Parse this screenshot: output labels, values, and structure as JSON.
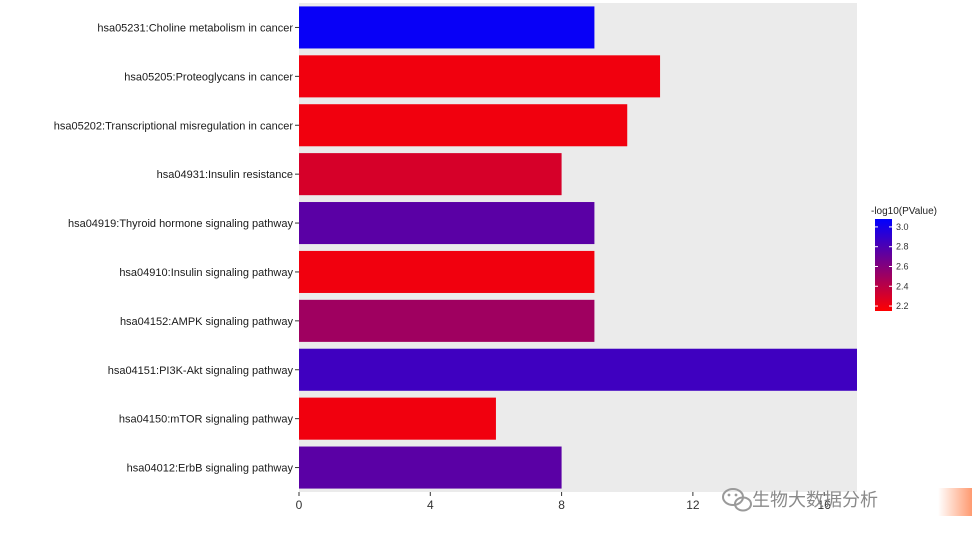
{
  "chart_data": {
    "type": "bar",
    "orientation": "horizontal",
    "categories": [
      "hsa05231:Choline metabolism in cancer",
      "hsa05205:Proteoglycans in cancer",
      "hsa05202:Transcriptional misregulation in cancer",
      "hsa04931:Insulin resistance",
      "hsa04919:Thyroid hormone signaling pathway",
      "hsa04910:Insulin signaling pathway",
      "hsa04152:AMPK signaling pathway",
      "hsa04151:PI3K-Akt signaling pathway",
      "hsa04150:mTOR signaling pathway",
      "hsa04012:ErbB signaling pathway"
    ],
    "values": [
      9,
      11,
      10,
      8,
      9,
      9,
      9,
      17,
      6,
      8
    ],
    "color_values": [
      3.05,
      2.2,
      2.2,
      2.3,
      2.75,
      2.2,
      2.5,
      2.85,
      2.2,
      2.75
    ],
    "xlim": [
      0,
      17
    ],
    "xticks": [
      0,
      4,
      8,
      12,
      16
    ],
    "grid": false,
    "panel_background": "#ebebeb",
    "legend": {
      "title": "-log10(PValue)",
      "placement": "right",
      "ticks": [
        3.0,
        2.8,
        2.6,
        2.4,
        2.2
      ],
      "tick_labels": [
        "3.0",
        "2.8",
        "2.6",
        "2.4",
        "2.2"
      ],
      "range": [
        2.15,
        3.08
      ],
      "low_color": "#ff0000",
      "high_color": "#0000ff"
    }
  },
  "watermark": {
    "text": "生物大数据分析",
    "icon": "wechat-icon"
  }
}
